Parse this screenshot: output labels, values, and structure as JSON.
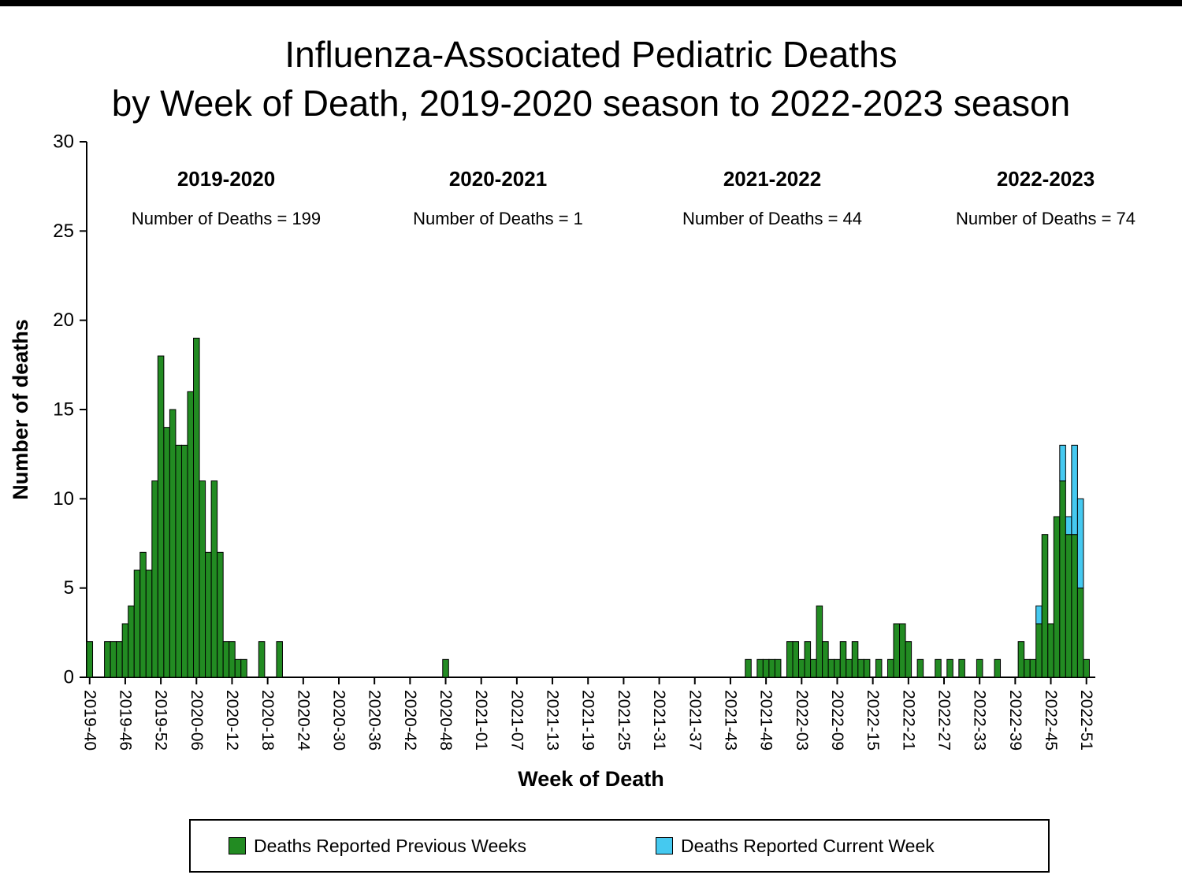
{
  "title": {
    "line1": "Influenza-Associated Pediatric Deaths",
    "line2": "by Week of Death, 2019-2020 season to 2022-2023 season"
  },
  "seasons": [
    {
      "label": "2019-2020",
      "count_text": "Number of Deaths = 199",
      "deaths": 199
    },
    {
      "label": "2020-2021",
      "count_text": "Number of Deaths = 1",
      "deaths": 1
    },
    {
      "label": "2021-2022",
      "count_text": "Number of Deaths = 44",
      "deaths": 44
    },
    {
      "label": "2022-2023",
      "count_text": "Number of Deaths = 74",
      "deaths": 74
    }
  ],
  "legend": {
    "previous_label": "Deaths Reported Previous Weeks",
    "current_label": "Deaths Reported Current Week"
  },
  "colors": {
    "previous_weeks": "#228B22",
    "current_week": "#45C9F0",
    "axis": "#000000",
    "background": "#FFFFFF"
  },
  "chart_data": {
    "type": "bar",
    "stacked": true,
    "title": "Influenza-Associated Pediatric Deaths by Week of Death, 2019-2020 season to 2022-2023 season",
    "xlabel": "Week of Death",
    "ylabel": "Number of deaths",
    "ylim": [
      0,
      30
    ],
    "yticks": [
      0,
      5,
      10,
      15,
      20,
      25,
      30
    ],
    "grid": false,
    "legend_position": "bottom",
    "x_first_week": "2019-40",
    "x_total_weeks": 170,
    "x_tick_labels": [
      "2019-40",
      "2019-46",
      "2019-52",
      "2020-06",
      "2020-12",
      "2020-18",
      "2020-24",
      "2020-30",
      "2020-36",
      "2020-42",
      "2020-48",
      "2021-01",
      "2021-07",
      "2021-13",
      "2021-19",
      "2021-25",
      "2021-31",
      "2021-37",
      "2021-43",
      "2021-49",
      "2022-03",
      "2022-09",
      "2022-15",
      "2022-21",
      "2022-27",
      "2022-33",
      "2022-39",
      "2022-45",
      "2022-51"
    ],
    "series_names": [
      "Deaths Reported Previous Weeks",
      "Deaths Reported Current Week"
    ],
    "bars_format": [
      "week",
      "deaths_previous_weeks",
      "deaths_current_week"
    ],
    "bars": [
      [
        "2019-40",
        2,
        0
      ],
      [
        "2019-43",
        2,
        0
      ],
      [
        "2019-44",
        2,
        0
      ],
      [
        "2019-45",
        2,
        0
      ],
      [
        "2019-46",
        3,
        0
      ],
      [
        "2019-47",
        4,
        0
      ],
      [
        "2019-48",
        6,
        0
      ],
      [
        "2019-49",
        7,
        0
      ],
      [
        "2019-50",
        6,
        0
      ],
      [
        "2019-51",
        11,
        0
      ],
      [
        "2019-52",
        18,
        0
      ],
      [
        "2020-01",
        14,
        0
      ],
      [
        "2020-02",
        15,
        0
      ],
      [
        "2020-03",
        13,
        0
      ],
      [
        "2020-04",
        13,
        0
      ],
      [
        "2020-05",
        16,
        0
      ],
      [
        "2020-06",
        19,
        0
      ],
      [
        "2020-07",
        11,
        0
      ],
      [
        "2020-08",
        7,
        0
      ],
      [
        "2020-09",
        11,
        0
      ],
      [
        "2020-10",
        7,
        0
      ],
      [
        "2020-11",
        2,
        0
      ],
      [
        "2020-12",
        2,
        0
      ],
      [
        "2020-13",
        1,
        0
      ],
      [
        "2020-14",
        1,
        0
      ],
      [
        "2020-17",
        2,
        0
      ],
      [
        "2020-20",
        2,
        0
      ],
      [
        "2020-48",
        1,
        0
      ],
      [
        "2021-46",
        1,
        0
      ],
      [
        "2021-48",
        1,
        0
      ],
      [
        "2021-49",
        1,
        0
      ],
      [
        "2021-50",
        1,
        0
      ],
      [
        "2021-51",
        1,
        0
      ],
      [
        "2022-01",
        2,
        0
      ],
      [
        "2022-02",
        2,
        0
      ],
      [
        "2022-03",
        1,
        0
      ],
      [
        "2022-04",
        2,
        0
      ],
      [
        "2022-05",
        1,
        0
      ],
      [
        "2022-06",
        4,
        0
      ],
      [
        "2022-07",
        2,
        0
      ],
      [
        "2022-08",
        1,
        0
      ],
      [
        "2022-09",
        1,
        0
      ],
      [
        "2022-10",
        2,
        0
      ],
      [
        "2022-11",
        1,
        0
      ],
      [
        "2022-12",
        2,
        0
      ],
      [
        "2022-13",
        1,
        0
      ],
      [
        "2022-14",
        1,
        0
      ],
      [
        "2022-16",
        1,
        0
      ],
      [
        "2022-18",
        1,
        0
      ],
      [
        "2022-19",
        3,
        0
      ],
      [
        "2022-20",
        3,
        0
      ],
      [
        "2022-21",
        2,
        0
      ],
      [
        "2022-23",
        1,
        0
      ],
      [
        "2022-26",
        1,
        0
      ],
      [
        "2022-28",
        1,
        0
      ],
      [
        "2022-30",
        1,
        0
      ],
      [
        "2022-33",
        1,
        0
      ],
      [
        "2022-36",
        1,
        0
      ],
      [
        "2022-40",
        2,
        0
      ],
      [
        "2022-41",
        1,
        0
      ],
      [
        "2022-42",
        1,
        0
      ],
      [
        "2022-43",
        3,
        1
      ],
      [
        "2022-44",
        8,
        0
      ],
      [
        "2022-45",
        3,
        0
      ],
      [
        "2022-46",
        9,
        0
      ],
      [
        "2022-47",
        11,
        2
      ],
      [
        "2022-48",
        8,
        1
      ],
      [
        "2022-49",
        8,
        5
      ],
      [
        "2022-50",
        5,
        5
      ],
      [
        "2022-51",
        1,
        0
      ]
    ]
  }
}
